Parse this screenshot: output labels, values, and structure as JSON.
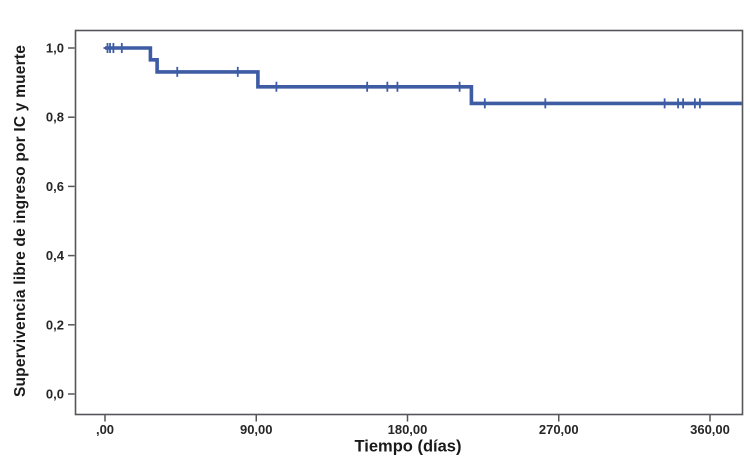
{
  "figure": {
    "background": "#ffffff",
    "frame_color": "#55565a",
    "text_color": "#1a1a1a"
  },
  "chart_data": {
    "type": "line",
    "subtype": "kaplan-meier-step-survival",
    "title": "",
    "xlabel": "Tiempo (días)",
    "ylabel": "Supervivencia libre de ingreso por IC y muerte",
    "x_unit": "days",
    "xlim": [
      -18,
      379
    ],
    "ylim": [
      -0.06,
      1.05
    ],
    "grid": false,
    "legend": "none",
    "xticks": {
      "values": [
        0,
        90,
        180,
        270,
        360
      ],
      "labels": [
        ",00",
        "90,00",
        "180,00",
        "270,00",
        "360,00"
      ]
    },
    "yticks": {
      "values": [
        0.0,
        0.2,
        0.4,
        0.6,
        0.8,
        1.0
      ],
      "labels": [
        "0,0",
        "0,2",
        "0,4",
        "0,6",
        "0,8",
        "1,0"
      ]
    },
    "series": [
      {
        "color": "#3D5CA4",
        "line_width": 3.6,
        "steps": [
          [
            0,
            1.0
          ],
          [
            27,
            1.0
          ],
          [
            27,
            0.966
          ],
          [
            31,
            0.966
          ],
          [
            31,
            0.931
          ],
          [
            91,
            0.931
          ],
          [
            91,
            0.888
          ],
          [
            218,
            0.888
          ],
          [
            218,
            0.84
          ],
          [
            379,
            0.84
          ]
        ],
        "censored": [
          [
            1.5,
            1.0
          ],
          [
            3,
            1.0
          ],
          [
            5,
            1.0
          ],
          [
            10,
            1.0
          ],
          [
            43,
            0.931
          ],
          [
            79,
            0.931
          ],
          [
            102,
            0.888
          ],
          [
            156,
            0.888
          ],
          [
            168,
            0.888
          ],
          [
            174,
            0.888
          ],
          [
            211,
            0.888
          ],
          [
            226,
            0.84
          ],
          [
            262,
            0.84
          ],
          [
            333,
            0.84
          ],
          [
            341,
            0.84
          ],
          [
            344,
            0.84
          ],
          [
            351,
            0.84
          ],
          [
            354,
            0.84
          ]
        ]
      }
    ]
  }
}
